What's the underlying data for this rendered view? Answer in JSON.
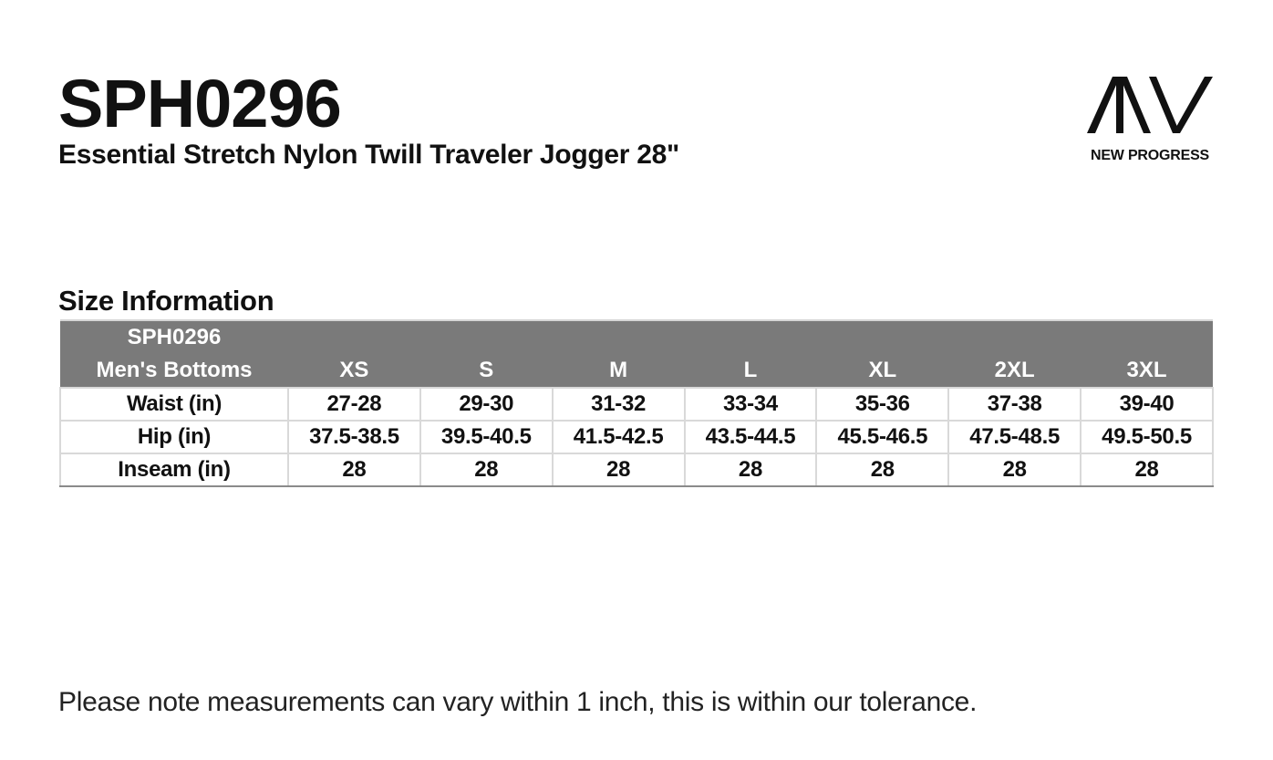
{
  "header": {
    "product_code": "SPH0296",
    "product_name": "Essential Stretch Nylon Twill Traveler Jogger 28\""
  },
  "logo": {
    "mark_text": "AIIV",
    "icon": "new-progress-logo-mark",
    "brand_text": "NEW PROGRESS"
  },
  "size_info": {
    "title": "Size Information",
    "header_bg_color": "#7a7a7a",
    "corner_line1": "SPH0296",
    "corner_line2": "Men's Bottoms",
    "sizes": [
      "XS",
      "S",
      "M",
      "L",
      "XL",
      "2XL",
      "3XL"
    ],
    "rows": [
      {
        "label": "Waist (in)",
        "values": [
          "27-28",
          "29-30",
          "31-32",
          "33-34",
          "35-36",
          "37-38",
          "39-40"
        ]
      },
      {
        "label": "Hip (in)",
        "values": [
          "37.5-38.5",
          "39.5-40.5",
          "41.5-42.5",
          "43.5-44.5",
          "45.5-46.5",
          "47.5-48.5",
          "49.5-50.5"
        ]
      },
      {
        "label": "Inseam (in)",
        "values": [
          "28",
          "28",
          "28",
          "28",
          "28",
          "28",
          "28"
        ]
      }
    ]
  },
  "footer": {
    "note": "Please note measurements can vary within 1 inch, this is within our tolerance."
  }
}
